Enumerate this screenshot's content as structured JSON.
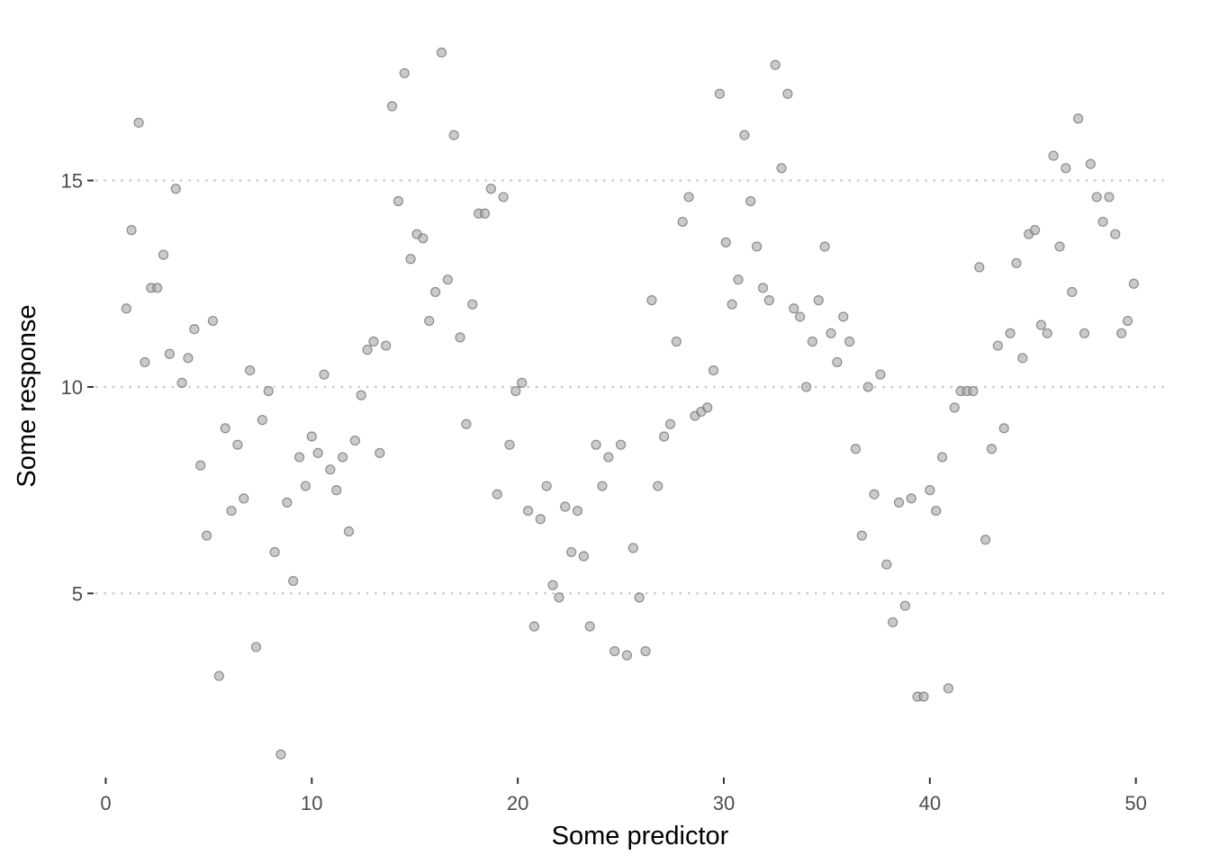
{
  "chart_data": {
    "type": "scatter",
    "title": "",
    "xlabel": "Some predictor",
    "ylabel": "Some response",
    "xlim": [
      -0.5,
      51.5
    ],
    "ylim": [
      0.8,
      18.5
    ],
    "x_ticks": [
      0,
      10,
      20,
      30,
      40,
      50
    ],
    "y_ticks": [
      5,
      10,
      15
    ],
    "x_tick_labels": [
      "0",
      "10",
      "20",
      "30",
      "40",
      "50"
    ],
    "y_tick_labels": [
      "5",
      "10",
      "15"
    ],
    "grid": "horizontal major, dotted",
    "legend": "none",
    "point_color": "#999999",
    "grid_color": "#c8c8c8",
    "series": [
      {
        "x": [
          1.0,
          1.25,
          1.6,
          1.9,
          2.2,
          2.5,
          2.8,
          3.1,
          3.4,
          3.7,
          4.0,
          4.3,
          4.6,
          4.9,
          5.2,
          5.5,
          5.8,
          6.1,
          6.4,
          6.7,
          7.0,
          7.3,
          7.6,
          7.9,
          8.2,
          8.5,
          8.8,
          9.1,
          9.4,
          9.7,
          10.0,
          10.3,
          10.6,
          10.9,
          11.2,
          11.5,
          11.8,
          12.1,
          12.4,
          12.7,
          13.0,
          13.3,
          13.6,
          13.9,
          14.2,
          14.5,
          14.8,
          15.1,
          15.4,
          15.7,
          16.0,
          16.3,
          16.6,
          16.9,
          17.2,
          17.5,
          17.8,
          18.1,
          18.4,
          18.7,
          19.0,
          19.3,
          19.6,
          19.9,
          20.2,
          20.5,
          20.8,
          21.1,
          21.4,
          21.7,
          22.0,
          22.3,
          22.6,
          22.9,
          23.2,
          23.5,
          23.8,
          24.1,
          24.4,
          24.7,
          25.0,
          25.3,
          25.6,
          25.9,
          26.2,
          26.5,
          26.8,
          27.1,
          27.4,
          27.7,
          28.0,
          28.3,
          28.6,
          28.9,
          29.2,
          29.5,
          29.8,
          30.1,
          30.4,
          30.7,
          31.0,
          31.3,
          31.6,
          31.9,
          32.2,
          32.5,
          32.8,
          33.1,
          33.4,
          33.7,
          34.0,
          34.3,
          34.6,
          34.9,
          35.2,
          35.5,
          35.8,
          36.1,
          36.4,
          36.7,
          37.0,
          37.3,
          37.6,
          37.9,
          38.2,
          38.5,
          38.8,
          39.1,
          39.4,
          39.7,
          40.0,
          40.3,
          40.6,
          40.9,
          41.2,
          41.5,
          41.8,
          42.1,
          42.4,
          42.7,
          43.0,
          43.3,
          43.6,
          43.9,
          44.2,
          44.5,
          44.8,
          45.1,
          45.4,
          45.7,
          46.0,
          46.3,
          46.6,
          46.9,
          47.2,
          47.5,
          47.8,
          48.1,
          48.4,
          48.7,
          49.0,
          49.3,
          49.6,
          49.9
        ],
        "y": [
          11.9,
          13.8,
          16.4,
          10.6,
          12.4,
          12.4,
          13.2,
          10.8,
          14.8,
          10.1,
          10.7,
          11.4,
          8.1,
          6.4,
          11.6,
          3.0,
          9.0,
          7.0,
          8.6,
          7.3,
          10.4,
          3.7,
          9.2,
          9.9,
          6.0,
          1.1,
          7.2,
          5.3,
          8.3,
          7.6,
          8.8,
          8.4,
          10.3,
          8.0,
          7.5,
          8.3,
          6.5,
          8.7,
          9.8,
          10.9,
          11.1,
          8.4,
          11.0,
          16.8,
          14.5,
          17.6,
          13.1,
          13.7,
          13.6,
          11.6,
          12.3,
          18.1,
          12.6,
          16.1,
          11.2,
          9.1,
          12.0,
          14.2,
          14.2,
          14.8,
          7.4,
          14.6,
          8.6,
          9.9,
          10.1,
          7.0,
          4.2,
          6.8,
          7.6,
          5.2,
          4.9,
          7.1,
          6.0,
          7.0,
          5.9,
          4.2,
          8.6,
          7.6,
          8.3,
          3.6,
          8.6,
          3.5,
          6.1,
          4.9,
          3.6,
          12.1,
          7.6,
          8.8,
          9.1,
          11.1,
          14.0,
          14.6,
          9.3,
          9.4,
          9.5,
          10.4,
          17.1,
          13.5,
          12.0,
          12.6,
          16.1,
          14.5,
          13.4,
          12.4,
          12.1,
          17.8,
          15.3,
          17.1,
          11.9,
          11.7,
          10.0,
          11.1,
          12.1,
          13.4,
          11.3,
          10.6,
          11.7,
          11.1,
          8.5,
          6.4,
          10.0,
          7.4,
          10.3,
          5.7,
          4.3,
          7.2,
          4.7,
          7.3,
          2.5,
          2.5,
          7.5,
          7.0,
          8.3,
          2.7,
          9.5,
          9.9,
          9.9,
          9.9,
          12.9,
          6.3,
          8.5,
          11.0,
          9.0,
          11.3,
          13.0,
          10.7,
          13.7,
          13.8,
          11.5,
          11.3,
          15.6,
          13.4,
          15.3,
          12.3,
          16.5,
          11.3,
          15.4,
          14.6,
          14.0,
          14.6,
          13.7,
          11.3,
          11.6,
          12.5
        ]
      }
    ]
  }
}
